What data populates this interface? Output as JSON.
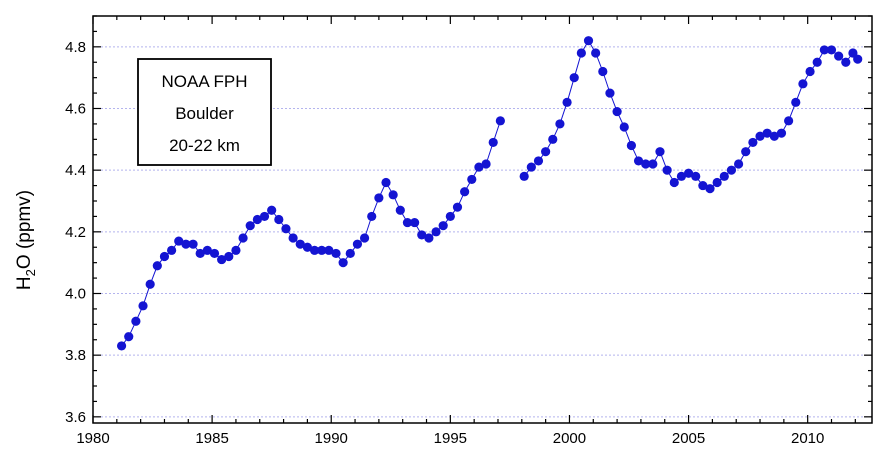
{
  "chart_data": {
    "type": "scatter",
    "ylabel": {
      "prefix": "H",
      "subscript": "2",
      "suffix": "O (ppmv)"
    },
    "annotation": [
      "NOAA FPH",
      "Boulder",
      "20-22 km"
    ],
    "xlim": [
      1980,
      2012.7
    ],
    "ylim": [
      3.58,
      4.9
    ],
    "x_ticks": [
      1980,
      1985,
      1990,
      1995,
      2000,
      2005,
      2010
    ],
    "y_ticks": [
      3.6,
      3.8,
      4.0,
      4.2,
      4.4,
      4.6,
      4.8
    ],
    "x_tick_labels": [
      "1980",
      "1985",
      "1990",
      "1995",
      "2000",
      "2005",
      "2010"
    ],
    "y_tick_labels": [
      "3.6",
      "3.8",
      "4.0",
      "4.2",
      "4.4",
      "4.6",
      "4.8"
    ],
    "grid": "horizontal dotted",
    "colors": {
      "series": "#1414d2",
      "grid": "#b4b4ee"
    },
    "series": [
      {
        "segments": [
          [
            [
              1981.2,
              3.83
            ],
            [
              1981.5,
              3.86
            ],
            [
              1981.8,
              3.91
            ],
            [
              1982.1,
              3.96
            ],
            [
              1982.4,
              4.03
            ],
            [
              1982.7,
              4.09
            ],
            [
              1983.0,
              4.12
            ],
            [
              1983.3,
              4.14
            ],
            [
              1983.6,
              4.17
            ],
            [
              1983.9,
              4.16
            ],
            [
              1984.2,
              4.16
            ],
            [
              1984.5,
              4.13
            ],
            [
              1984.8,
              4.14
            ],
            [
              1985.1,
              4.13
            ],
            [
              1985.4,
              4.11
            ],
            [
              1985.7,
              4.12
            ],
            [
              1986.0,
              4.14
            ],
            [
              1986.3,
              4.18
            ],
            [
              1986.6,
              4.22
            ],
            [
              1986.9,
              4.24
            ],
            [
              1987.2,
              4.25
            ],
            [
              1987.5,
              4.27
            ],
            [
              1987.8,
              4.24
            ],
            [
              1988.1,
              4.21
            ],
            [
              1988.4,
              4.18
            ],
            [
              1988.7,
              4.16
            ],
            [
              1989.0,
              4.15
            ],
            [
              1989.3,
              4.14
            ],
            [
              1989.6,
              4.14
            ],
            [
              1989.9,
              4.14
            ],
            [
              1990.2,
              4.13
            ],
            [
              1990.5,
              4.1
            ],
            [
              1990.8,
              4.13
            ],
            [
              1991.1,
              4.16
            ],
            [
              1991.4,
              4.18
            ],
            [
              1991.7,
              4.25
            ],
            [
              1992.0,
              4.31
            ],
            [
              1992.3,
              4.36
            ],
            [
              1992.6,
              4.32
            ],
            [
              1992.9,
              4.27
            ],
            [
              1993.2,
              4.23
            ],
            [
              1993.5,
              4.23
            ],
            [
              1993.8,
              4.19
            ],
            [
              1994.1,
              4.18
            ],
            [
              1994.4,
              4.2
            ],
            [
              1994.7,
              4.22
            ],
            [
              1995.0,
              4.25
            ],
            [
              1995.3,
              4.28
            ],
            [
              1995.6,
              4.33
            ],
            [
              1995.9,
              4.37
            ],
            [
              1996.2,
              4.41
            ],
            [
              1996.5,
              4.42
            ],
            [
              1996.8,
              4.49
            ],
            [
              1997.1,
              4.56
            ]
          ],
          [
            [
              1998.1,
              4.38
            ],
            [
              1998.4,
              4.41
            ],
            [
              1998.7,
              4.43
            ],
            [
              1999.0,
              4.46
            ],
            [
              1999.3,
              4.5
            ],
            [
              1999.6,
              4.55
            ],
            [
              1999.9,
              4.62
            ],
            [
              2000.2,
              4.7
            ],
            [
              2000.5,
              4.78
            ],
            [
              2000.8,
              4.82
            ],
            [
              2001.1,
              4.78
            ],
            [
              2001.4,
              4.72
            ],
            [
              2001.7,
              4.65
            ],
            [
              2002.0,
              4.59
            ],
            [
              2002.3,
              4.54
            ],
            [
              2002.6,
              4.48
            ],
            [
              2002.9,
              4.43
            ],
            [
              2003.2,
              4.42
            ],
            [
              2003.5,
              4.42
            ],
            [
              2003.8,
              4.46
            ],
            [
              2004.1,
              4.4
            ],
            [
              2004.4,
              4.36
            ],
            [
              2004.7,
              4.38
            ],
            [
              2005.0,
              4.39
            ],
            [
              2005.3,
              4.38
            ],
            [
              2005.6,
              4.35
            ],
            [
              2005.9,
              4.34
            ],
            [
              2006.2,
              4.36
            ],
            [
              2006.5,
              4.38
            ],
            [
              2006.8,
              4.4
            ],
            [
              2007.1,
              4.42
            ],
            [
              2007.4,
              4.46
            ],
            [
              2007.7,
              4.49
            ],
            [
              2008.0,
              4.51
            ],
            [
              2008.3,
              4.52
            ],
            [
              2008.6,
              4.51
            ],
            [
              2008.9,
              4.52
            ],
            [
              2009.2,
              4.56
            ],
            [
              2009.5,
              4.62
            ],
            [
              2009.8,
              4.68
            ],
            [
              2010.1,
              4.72
            ],
            [
              2010.4,
              4.75
            ],
            [
              2010.7,
              4.79
            ],
            [
              2011.0,
              4.79
            ],
            [
              2011.3,
              4.77
            ],
            [
              2011.6,
              4.75
            ],
            [
              2011.9,
              4.78
            ],
            [
              2012.1,
              4.76
            ]
          ]
        ]
      }
    ]
  }
}
